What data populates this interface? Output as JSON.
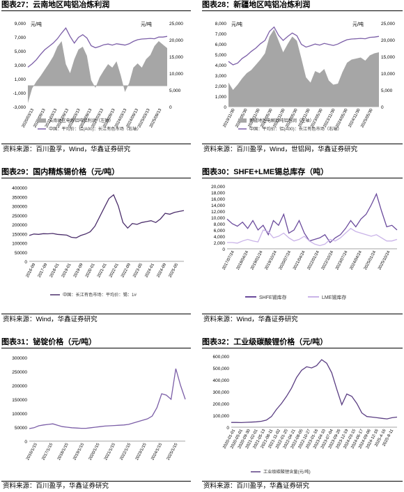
{
  "panels": [
    {
      "title": "图表27：云南地区吨铝冶炼利润",
      "source": "资料来源：百川盈孚，Wind，华鑫证券研究"
    },
    {
      "title": "图表28：新疆地区吨铝冶炼利润",
      "source": "资料来源：百川盈孚，Wind，世铝网，华鑫证券研究"
    },
    {
      "title": "图表29：国内精炼锡价格（元/吨）",
      "source": "资料来源：Wind，华鑫证券研究"
    },
    {
      "title": "图表30：SHFE+LME锡总库存（吨）",
      "source": "资料来源：Wind，华鑫证券研究"
    },
    {
      "title": "图表31：铋锭价格（元/吨）",
      "source": "资料来源：百川盈孚，华鑫证券研究"
    },
    {
      "title": "图表32：工业级碳酸锂价格（元/吨）",
      "source": "资料来源：百川盈孚，华鑫证券研究"
    }
  ],
  "chart_data": [
    {
      "type": "area",
      "left_unit": "元/吨",
      "y_ticks": [
        "9,000",
        "7,000",
        "5,000",
        "3,000",
        "1,000",
        "-1,000",
        "-3,000"
      ],
      "y2_ticks": [
        "25,000",
        "20,000",
        "15,000",
        "10,000",
        "5,000",
        "0"
      ],
      "ylim": [
        -3000,
        9000
      ],
      "y2lim": [
        0,
        25000
      ],
      "x_ticks": [
        "2020/03/13",
        "2020/09/13",
        "2021/03/13",
        "2021/09/13",
        "2022/03/13",
        "2022/09/13",
        "2023/03/13",
        "2023/09/13",
        "2024/03/13",
        "2024/09/13",
        "2025/03/13",
        "2025/09/13"
      ],
      "series": [
        {
          "name": "云南地区电解铝吨铝利润（左轴）",
          "color": "#a6a6a6",
          "kind": "area",
          "values": [
            -2500,
            -400,
            600,
            1400,
            2300,
            3200,
            4200,
            5600,
            6400,
            3100,
            1800,
            3800,
            5200,
            5600,
            4300,
            800,
            -300,
            1200,
            2200,
            3100,
            2600,
            3500,
            1500,
            -900,
            400,
            2600,
            3200,
            2600,
            3800,
            4400,
            5700,
            6400,
            5900,
            5400
          ]
        },
        {
          "name": "中国：平均价：铝(A00)：长江有色市场（右轴）",
          "color": "#7b5ea7",
          "kind": "line",
          "values": [
            11800,
            12800,
            14000,
            15600,
            17000,
            18000,
            19000,
            20300,
            22000,
            23500,
            21000,
            19000,
            20700,
            21500,
            20500,
            18200,
            17600,
            18000,
            18500,
            18700,
            18400,
            18800,
            18600,
            18400,
            18800,
            19500,
            20000,
            20200,
            20300,
            20400,
            20300,
            20800,
            20800,
            21000
          ]
        }
      ]
    },
    {
      "type": "area",
      "left_unit": "元/吨",
      "y_ticks": [
        "8,000",
        "7,000",
        "6,000",
        "5,000",
        "4,000",
        "3,000",
        "2,000",
        "1,000",
        "0"
      ],
      "y2_ticks": [
        "25,000",
        "20,000",
        "15,000",
        "10,000",
        "5,000",
        "0"
      ],
      "ylim": [
        0,
        8000
      ],
      "y2lim": [
        0,
        25000
      ],
      "x_ticks": [
        "2019/11/30",
        "2020/05/30",
        "2020/11/30",
        "2021/05/30",
        "2021/11/30",
        "2022/05/30",
        "2022/11/30",
        "2023/05/30",
        "2023/11/30",
        "2024/05/30",
        "2024/11/30",
        "2025/05/30"
      ],
      "series": [
        {
          "name": "新疆地区电解铝吨铝利润（左轴）",
          "color": "#a6a6a6",
          "kind": "area",
          "values": [
            2300,
            1600,
            2100,
            2700,
            3200,
            3500,
            4000,
            4500,
            5100,
            6700,
            7400,
            6300,
            5200,
            6000,
            6700,
            6300,
            4600,
            2800,
            2300,
            3400,
            3200,
            3600,
            2500,
            2100,
            2200,
            3300,
            4200,
            4500,
            4600,
            4700,
            4400,
            4900,
            5100,
            5200
          ]
        },
        {
          "name": "中国：平均价：铝(A00)：长江有色市场（右轴）",
          "color": "#7b5ea7",
          "kind": "line",
          "values": [
            13500,
            12500,
            13000,
            14400,
            15300,
            16500,
            17500,
            18800,
            19800,
            22500,
            23800,
            21300,
            19800,
            21000,
            22000,
            21200,
            18600,
            17800,
            18200,
            18700,
            18400,
            18900,
            18600,
            18300,
            18700,
            19400,
            20000,
            20200,
            20300,
            20400,
            20300,
            20700,
            20800,
            21000
          ]
        }
      ]
    },
    {
      "type": "line",
      "y_ticks": [
        "400000",
        "350000",
        "300000",
        "250000",
        "200000",
        "150000",
        "100000",
        "50000",
        "0"
      ],
      "ylim": [
        0,
        400000
      ],
      "x_ticks": [
        "2016-09",
        "2017-09",
        "2018-01",
        "2019-01",
        "2019-09",
        "2020-01",
        "2021-01",
        "2022-01",
        "2022-09",
        "2023-05",
        "2024-01",
        "2024-09",
        "2025-05"
      ],
      "series": [
        {
          "name": "中国：长江有色市场：平均价：锡：1#",
          "color": "#4b2e6b",
          "values": [
            140000,
            148000,
            146000,
            150000,
            149000,
            151000,
            146000,
            144000,
            142000,
            130000,
            127000,
            140000,
            148000,
            160000,
            190000,
            240000,
            290000,
            340000,
            360000,
            300000,
            210000,
            180000,
            205000,
            200000,
            210000,
            215000,
            220000,
            210000,
            230000,
            260000,
            255000,
            265000,
            270000,
            275000
          ]
        }
      ]
    },
    {
      "type": "line",
      "y_ticks": [
        "20,000",
        "18,000",
        "16,000",
        "14,000",
        "12,000",
        "10,000",
        "8,000",
        "6,000",
        "4,000",
        "2,000",
        "0"
      ],
      "ylim": [
        0,
        20000
      ],
      "x_ticks": [
        "2017/07/24",
        "2018/04/24",
        "2019/01/24",
        "2019/10/24",
        "2020/07/24",
        "2021/04/24",
        "2022/01/24",
        "2022/10/24",
        "2023/07/24",
        "2024/04/24",
        "2025/01/24",
        "2025/10/24"
      ],
      "series": [
        {
          "name": "SHFE锡库存",
          "color": "#6a4a9c",
          "values": [
            9500,
            8000,
            7200,
            8500,
            6500,
            9000,
            6000,
            7500,
            4500,
            9000,
            7500,
            11000,
            5000,
            6000,
            9000,
            5000,
            2500,
            3000,
            3500,
            4500,
            2000,
            3500,
            4500,
            6500,
            9000,
            7000,
            9500,
            11000,
            14000,
            17500,
            12000,
            7000,
            7500,
            6000
          ]
        },
        {
          "name": "LME锡库存",
          "color": "#c9b3e8",
          "values": [
            2000,
            2000,
            1800,
            2500,
            3000,
            2500,
            2200,
            6000,
            5500,
            3500,
            4000,
            5000,
            3500,
            2500,
            3000,
            4000,
            2500,
            1500,
            1000,
            1500,
            3000,
            2500,
            3500,
            5000,
            6500,
            5500,
            5000,
            4500,
            4000,
            4500,
            3500,
            2500,
            2500,
            3000
          ]
        }
      ]
    },
    {
      "type": "line",
      "y_ticks": [
        "300000",
        "250000",
        "200000",
        "150000",
        "100000",
        "50000",
        "0"
      ],
      "ylim": [
        0,
        300000
      ],
      "x_ticks": [
        "2016/1/15",
        "2017/1/15",
        "2018/1/15",
        "2019/1/15",
        "2020/1/15",
        "2021/1/15",
        "2022/1/15",
        "2023/1/15",
        "2024/1/15",
        "2025/1/15"
      ],
      "series": [
        {
          "name": "铋锭价格",
          "color": "#7b5ea7",
          "values": [
            45000,
            48000,
            55000,
            58000,
            60000,
            62000,
            57000,
            52000,
            50000,
            48000,
            47000,
            46000,
            46000,
            48000,
            50000,
            52000,
            54000,
            55000,
            56000,
            57000,
            58000,
            60000,
            65000,
            70000,
            75000,
            80000,
            90000,
            120000,
            170000,
            165000,
            150000,
            260000,
            200000,
            150000
          ]
        }
      ]
    },
    {
      "type": "line",
      "y_ticks": [
        "600,000",
        "500,000",
        "400,000",
        "300,000",
        "200,000",
        "100,000",
        "0"
      ],
      "ylim": [
        0,
        600000
      ],
      "x_ticks": [
        "2020-01-01",
        "2020-05-01",
        "2020-09-30",
        "2021-02-01",
        "2021-05-13",
        "2021-08-11",
        "2021-11-02",
        "2022-01-25",
        "2022-04-21",
        "2022-08-05",
        "2022-10-27",
        "2023-01-16",
        "2023-04-10",
        "2023-07-04",
        "2023-09-26",
        "2023-12-19",
        "2024-03-15",
        "2024-06-17",
        "2024-09-06",
        "2024-12-16",
        "2025-4-16",
        "2025-8-11"
      ],
      "series": [
        {
          "name": "工业级碳酸锂含量(元/吨)",
          "color": "#5a3d82",
          "values": [
            40000,
            40000,
            39000,
            41000,
            43000,
            45000,
            50000,
            60000,
            90000,
            150000,
            200000,
            260000,
            330000,
            420000,
            480000,
            510000,
            500000,
            520000,
            570000,
            540000,
            460000,
            320000,
            190000,
            280000,
            260000,
            200000,
            120000,
            90000,
            85000,
            80000,
            75000,
            70000,
            80000,
            85000
          ]
        }
      ]
    }
  ]
}
